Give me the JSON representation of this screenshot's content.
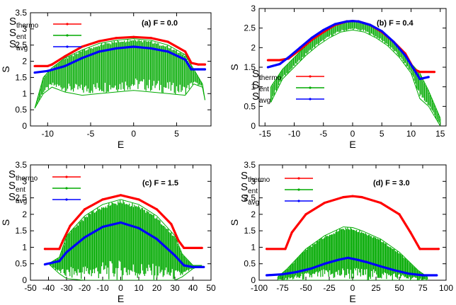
{
  "chart_data": [
    {
      "type": "line",
      "annotation": "(a)  F = 0.0",
      "xlabel": "E",
      "ylabel": "S",
      "xlim": [
        -12,
        9
      ],
      "ylim": [
        0,
        3.5
      ],
      "xticks": [
        -10,
        -5,
        0,
        5
      ],
      "xtick_labels": [
        "-10",
        "-5",
        "0",
        "5"
      ],
      "yticks": [
        0,
        0.5,
        1,
        1.5,
        2,
        2.5,
        3,
        3.5
      ],
      "ytick_labels": [
        "0",
        "0.5",
        "1",
        "1.5",
        "2",
        "2.5",
        "3",
        "3.5"
      ],
      "legend_placement": "top",
      "series": [
        {
          "name": "S",
          "sub": "thermo",
          "color": "#ff0000",
          "style": "line",
          "x": [
            -11.5,
            -10,
            -9.5,
            -8,
            -6,
            -4,
            -2,
            0,
            2,
            4,
            6,
            6.7,
            7.5,
            8.3
          ],
          "y": [
            1.85,
            1.85,
            1.9,
            2.15,
            2.45,
            2.62,
            2.72,
            2.75,
            2.72,
            2.6,
            2.3,
            1.95,
            1.9,
            1.9
          ]
        },
        {
          "name": "S",
          "sub": "ent",
          "color": "#00aa00",
          "style": "band",
          "x": [
            -11.5,
            -10.5,
            -9.5,
            -8,
            -6,
            -4,
            -2,
            0,
            2,
            4,
            6,
            7,
            8,
            8.3
          ],
          "y_high": [
            0.55,
            1.5,
            1.8,
            2.1,
            2.35,
            2.55,
            2.65,
            2.7,
            2.65,
            2.5,
            2.2,
            1.75,
            1.3,
            0.8
          ],
          "y_low": [
            0.55,
            1.0,
            1.2,
            1.05,
            0.95,
            1.0,
            1.05,
            1.1,
            1.05,
            1.0,
            0.95,
            1.3,
            1.2,
            0.8
          ]
        },
        {
          "name": "S",
          "sub": "avg",
          "color": "#0000ff",
          "style": "line",
          "x": [
            -11.5,
            -10,
            -8,
            -6,
            -4,
            -2,
            0,
            2,
            4,
            6,
            6.7,
            7.5,
            8.3
          ],
          "y": [
            1.65,
            1.7,
            1.85,
            2.1,
            2.3,
            2.4,
            2.45,
            2.4,
            2.3,
            2.05,
            1.75,
            1.75,
            1.75
          ]
        }
      ]
    },
    {
      "type": "line",
      "annotation": "(b)  F = 0.4",
      "xlabel": "E",
      "ylabel": "S",
      "xlim": [
        -16,
        16
      ],
      "ylim": [
        0,
        3
      ],
      "xticks": [
        -15,
        -10,
        -5,
        0,
        5,
        10,
        15
      ],
      "xtick_labels": [
        "-15",
        "-10",
        "-5",
        "0",
        "5",
        "10",
        "15"
      ],
      "yticks": [
        0,
        0.5,
        1,
        1.5,
        2,
        2.5,
        3
      ],
      "ytick_labels": [
        "0",
        "0.5",
        "1",
        "1.5",
        "2",
        "2.5",
        "3"
      ],
      "legend_placement": "right",
      "series": [
        {
          "name": "S",
          "sub": "thermo",
          "color": "#ff0000",
          "style": "line",
          "x": [
            -14.5,
            -12.5,
            -11,
            -9,
            -7,
            -5,
            -3,
            -1,
            0,
            1,
            3,
            5,
            7,
            9,
            10.5,
            11.5,
            14
          ],
          "y": [
            1.68,
            1.68,
            1.72,
            1.95,
            2.2,
            2.4,
            2.58,
            2.67,
            2.68,
            2.67,
            2.58,
            2.4,
            2.15,
            1.85,
            1.45,
            1.38,
            1.38
          ]
        },
        {
          "name": "S",
          "sub": "ent",
          "color": "#00aa00",
          "style": "band",
          "x": [
            -14,
            -12,
            -10,
            -8,
            -6,
            -4,
            -2,
            0,
            2,
            4,
            6,
            8,
            10,
            11.5,
            13,
            15
          ],
          "y_high": [
            1.0,
            1.45,
            1.75,
            2.05,
            2.3,
            2.5,
            2.62,
            2.68,
            2.62,
            2.5,
            2.3,
            2.0,
            1.6,
            1.35,
            0.9,
            0.2
          ],
          "y_low": [
            0.6,
            1.2,
            1.5,
            1.8,
            2.05,
            2.25,
            2.4,
            2.45,
            2.4,
            2.25,
            2.05,
            1.75,
            1.35,
            0.7,
            0.5,
            0.0
          ]
        },
        {
          "name": "S",
          "sub": "avg",
          "color": "#0000ff",
          "style": "line",
          "x": [
            -14.5,
            -12.5,
            -11,
            -9,
            -7,
            -5,
            -3,
            -1,
            0,
            1,
            3,
            5,
            7,
            9,
            10.5,
            11.5,
            13
          ],
          "y": [
            1.5,
            1.58,
            1.75,
            2.0,
            2.25,
            2.45,
            2.6,
            2.67,
            2.68,
            2.67,
            2.58,
            2.42,
            2.15,
            1.8,
            1.45,
            1.2,
            1.25
          ]
        }
      ]
    },
    {
      "type": "line",
      "annotation": "(c)  F = 1.5",
      "xlabel": "E",
      "ylabel": "S",
      "xlim": [
        -50,
        50
      ],
      "ylim": [
        0,
        3.5
      ],
      "xticks": [
        -50,
        -40,
        -30,
        -20,
        -10,
        0,
        10,
        20,
        30,
        40,
        50
      ],
      "xtick_labels": [
        "-50",
        "-40",
        "-30",
        "-20",
        "-10",
        "0",
        "10",
        "20",
        "30",
        "40",
        "50"
      ],
      "yticks": [
        0,
        0.5,
        1,
        1.5,
        2,
        2.5,
        3,
        3.5
      ],
      "ytick_labels": [
        "0",
        "0.5",
        "1",
        "1.5",
        "2",
        "2.5",
        "3",
        "3.5"
      ],
      "legend_placement": "top-left",
      "series": [
        {
          "name": "S",
          "sub": "thermo",
          "color": "#ff0000",
          "style": "line",
          "x": [
            -42,
            -34,
            -32,
            -28,
            -20,
            -10,
            0,
            10,
            20,
            28,
            32,
            35,
            45
          ],
          "y": [
            0.95,
            0.95,
            1.2,
            1.65,
            2.15,
            2.45,
            2.58,
            2.45,
            2.15,
            1.7,
            1.2,
            0.98,
            0.98
          ]
        },
        {
          "name": "S",
          "sub": "ent",
          "color": "#00aa00",
          "style": "band",
          "x": [
            -40,
            -34,
            -30,
            -20,
            -10,
            0,
            10,
            20,
            30,
            34,
            40,
            45
          ],
          "y_high": [
            0.5,
            0.7,
            1.35,
            1.95,
            2.3,
            2.45,
            2.3,
            1.95,
            1.35,
            0.8,
            0.45,
            0.45
          ],
          "y_low": [
            0.5,
            0.2,
            0.05,
            0.0,
            0.0,
            0.0,
            0.0,
            0.0,
            0.0,
            0.1,
            0.35,
            0.45
          ]
        },
        {
          "name": "S",
          "sub": "avg",
          "color": "#0000ff",
          "style": "line",
          "x": [
            -42,
            -34,
            -30,
            -20,
            -10,
            0,
            10,
            20,
            30,
            35,
            40,
            46
          ],
          "y": [
            0.48,
            0.58,
            0.85,
            1.3,
            1.62,
            1.75,
            1.58,
            1.25,
            0.75,
            0.45,
            0.4,
            0.4
          ]
        }
      ]
    },
    {
      "type": "line",
      "annotation": "(d)  F = 3.0",
      "xlabel": "E",
      "ylabel": "S",
      "xlim": [
        -100,
        100
      ],
      "ylim": [
        0,
        3.5
      ],
      "xticks": [
        -100,
        -75,
        -50,
        -25,
        0,
        25,
        50,
        75,
        100
      ],
      "xtick_labels": [
        "-100",
        "-75",
        "-50",
        "-25",
        "0",
        "25",
        "50",
        "75",
        "100"
      ],
      "yticks": [
        0,
        0.5,
        1,
        1.5,
        2,
        2.5,
        3,
        3.5
      ],
      "ytick_labels": [
        "0",
        "0.5",
        "1",
        "1.5",
        "2",
        "2.5",
        "3",
        "3.5"
      ],
      "legend_placement": "top-left",
      "series": [
        {
          "name": "S",
          "sub": "thermo",
          "color": "#ff0000",
          "style": "line",
          "x": [
            -92,
            -72,
            -65,
            -50,
            -30,
            -10,
            0,
            10,
            30,
            50,
            62,
            72,
            92
          ],
          "y": [
            0.95,
            0.95,
            1.45,
            2.0,
            2.35,
            2.52,
            2.55,
            2.52,
            2.35,
            2.0,
            1.45,
            0.95,
            0.95
          ]
        },
        {
          "name": "S",
          "sub": "ent",
          "color": "#00aa00",
          "style": "band",
          "x": [
            -80,
            -70,
            -50,
            -30,
            -10,
            0,
            10,
            30,
            50,
            70,
            80
          ],
          "y_high": [
            0.1,
            0.35,
            0.95,
            1.35,
            1.62,
            1.6,
            1.5,
            1.25,
            0.85,
            0.3,
            0.1
          ],
          "y_low": [
            0.0,
            0.0,
            0.0,
            0.0,
            0.0,
            0.0,
            0.0,
            0.0,
            0.0,
            0.0,
            0.0
          ]
        },
        {
          "name": "S",
          "sub": "avg",
          "color": "#0000ff",
          "style": "line",
          "x": [
            -92,
            -75,
            -60,
            -45,
            -30,
            -15,
            -5,
            5,
            15,
            30,
            45,
            60,
            75,
            90
          ],
          "y": [
            0.15,
            0.18,
            0.25,
            0.35,
            0.5,
            0.62,
            0.68,
            0.62,
            0.55,
            0.42,
            0.3,
            0.2,
            0.15,
            0.15
          ]
        }
      ]
    }
  ]
}
